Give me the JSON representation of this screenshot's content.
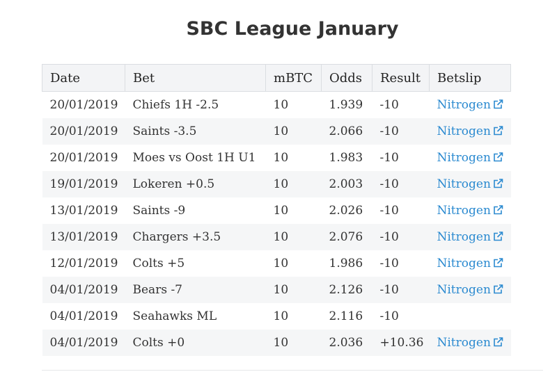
{
  "page": {
    "title": "SBC League January"
  },
  "table": {
    "headers": [
      "Date",
      "Bet",
      "mBTC",
      "Odds",
      "Result",
      "Betslip"
    ],
    "rows": [
      {
        "date": "20/01/2019",
        "bet": "Chiefs 1H -2.5",
        "mbtc": "10",
        "odds": "1.939",
        "result": "-10",
        "betslip": "Nitrogen"
      },
      {
        "date": "20/01/2019",
        "bet": "Saints -3.5",
        "mbtc": "10",
        "odds": "2.066",
        "result": "-10",
        "betslip": "Nitrogen"
      },
      {
        "date": "20/01/2019",
        "bet": "Moes vs Oost 1H U1",
        "mbtc": "10",
        "odds": "1.983",
        "result": "-10",
        "betslip": "Nitrogen"
      },
      {
        "date": "19/01/2019",
        "bet": "Lokeren +0.5",
        "mbtc": "10",
        "odds": "2.003",
        "result": "-10",
        "betslip": "Nitrogen"
      },
      {
        "date": "13/01/2019",
        "bet": "Saints -9",
        "mbtc": "10",
        "odds": "2.026",
        "result": "-10",
        "betslip": "Nitrogen"
      },
      {
        "date": "13/01/2019",
        "bet": "Chargers +3.5",
        "mbtc": "10",
        "odds": "2.076",
        "result": "-10",
        "betslip": "Nitrogen"
      },
      {
        "date": "12/01/2019",
        "bet": "Colts +5",
        "mbtc": "10",
        "odds": "1.986",
        "result": "-10",
        "betslip": "Nitrogen"
      },
      {
        "date": "04/01/2019",
        "bet": "Bears -7",
        "mbtc": "10",
        "odds": "2.126",
        "result": "-10",
        "betslip": "Nitrogen"
      },
      {
        "date": "04/01/2019",
        "bet": "Seahawks ML",
        "mbtc": "10",
        "odds": "2.116",
        "result": "-10",
        "betslip": ""
      },
      {
        "date": "04/01/2019",
        "bet": "Colts +0",
        "mbtc": "10",
        "odds": "2.036",
        "result": "+10.36",
        "betslip": "Nitrogen"
      }
    ]
  },
  "icons": {
    "external_link": "external-link-icon"
  },
  "colors": {
    "link": "#2b8ad0",
    "header_bg": "#f3f4f6",
    "stripe_bg": "#f5f6f7",
    "text": "#333333"
  }
}
